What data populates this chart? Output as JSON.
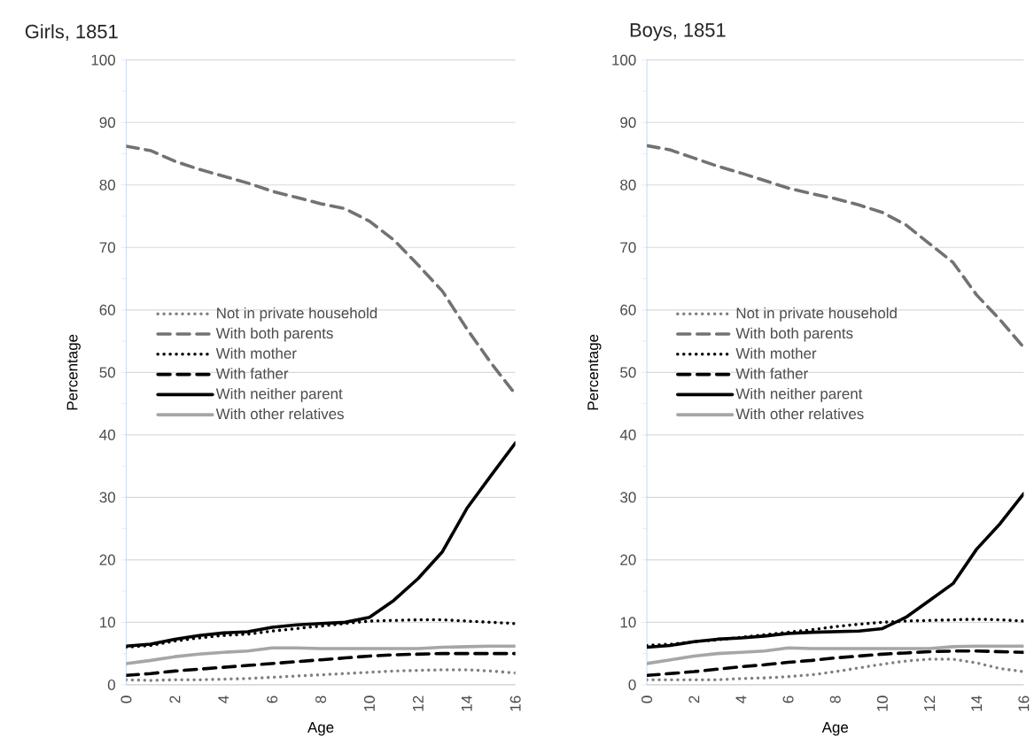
{
  "chart_data": [
    {
      "type": "line",
      "title": "Girls, 1851",
      "xlabel": "Age",
      "ylabel": "Percentage",
      "x": [
        0,
        1,
        2,
        3,
        4,
        5,
        6,
        7,
        8,
        9,
        10,
        11,
        12,
        13,
        14,
        15,
        16
      ],
      "xlim": [
        0,
        16
      ],
      "xticks": [
        0,
        2,
        4,
        6,
        8,
        10,
        12,
        14,
        16
      ],
      "ylim": [
        0,
        100
      ],
      "yticks": [
        0,
        10,
        20,
        30,
        40,
        50,
        60,
        70,
        80,
        90,
        100
      ],
      "grid": "y",
      "legend": "left",
      "series": [
        {
          "name": "Not in private household",
          "color": "#808080",
          "line_style": "dotted",
          "values": [
            0.8,
            0.7,
            0.8,
            0.8,
            0.9,
            1.0,
            1.2,
            1.4,
            1.6,
            1.8,
            2.0,
            2.2,
            2.3,
            2.4,
            2.4,
            2.2,
            1.9
          ]
        },
        {
          "name": "With both parents",
          "color": "#767171",
          "line_style": "dashed",
          "values": [
            86.2,
            85.5,
            83.8,
            82.5,
            81.4,
            80.3,
            79.0,
            78.0,
            77.0,
            76.2,
            74.2,
            71.2,
            67.2,
            63.0,
            57.0,
            51.5,
            46.5
          ]
        },
        {
          "name": "With mother",
          "color": "#000000",
          "line_style": "dotted",
          "values": [
            6.0,
            6.3,
            7.0,
            7.5,
            7.9,
            8.1,
            8.6,
            9.0,
            9.4,
            9.8,
            10.2,
            10.3,
            10.4,
            10.4,
            10.2,
            10.0,
            9.8
          ]
        },
        {
          "name": "With father",
          "color": "#000000",
          "line_style": "dashed",
          "values": [
            1.5,
            1.8,
            2.2,
            2.5,
            2.8,
            3.1,
            3.4,
            3.7,
            4.0,
            4.3,
            4.6,
            4.8,
            4.9,
            5.0,
            5.0,
            5.0,
            5.0
          ]
        },
        {
          "name": "With neither parent",
          "color": "#000000",
          "line_style": "solid",
          "values": [
            6.2,
            6.5,
            7.3,
            7.9,
            8.3,
            8.5,
            9.2,
            9.6,
            9.8,
            10.0,
            10.8,
            13.5,
            17.0,
            21.3,
            28.2,
            33.5,
            38.7
          ]
        },
        {
          "name": "With other relatives",
          "color": "#a6a6a6",
          "line_style": "solid",
          "values": [
            3.4,
            3.9,
            4.5,
            4.9,
            5.2,
            5.4,
            5.9,
            5.9,
            5.8,
            5.8,
            5.8,
            5.8,
            5.8,
            6.0,
            6.1,
            6.2,
            6.2
          ]
        }
      ]
    },
    {
      "type": "line",
      "title": "Boys, 1851",
      "xlabel": "Age",
      "ylabel": "Percentage",
      "x": [
        0,
        1,
        2,
        3,
        4,
        5,
        6,
        7,
        8,
        9,
        10,
        11,
        12,
        13,
        14,
        15,
        16
      ],
      "xlim": [
        0,
        16
      ],
      "xticks": [
        0,
        2,
        4,
        6,
        8,
        10,
        12,
        14,
        16
      ],
      "ylim": [
        0,
        100
      ],
      "yticks": [
        0,
        10,
        20,
        30,
        40,
        50,
        60,
        70,
        80,
        90,
        100
      ],
      "grid": "y",
      "legend": "left",
      "series": [
        {
          "name": "Not in private household",
          "color": "#808080",
          "line_style": "dotted",
          "values": [
            0.8,
            0.8,
            0.8,
            0.8,
            1.0,
            1.1,
            1.3,
            1.6,
            2.1,
            2.7,
            3.3,
            3.8,
            4.1,
            4.1,
            3.5,
            2.6,
            2.1
          ]
        },
        {
          "name": "With both parents",
          "color": "#767171",
          "line_style": "dashed",
          "values": [
            86.3,
            85.6,
            84.3,
            83.0,
            81.9,
            80.7,
            79.5,
            78.6,
            77.8,
            76.8,
            75.6,
            73.6,
            70.6,
            67.6,
            62.4,
            58.4,
            54.0
          ]
        },
        {
          "name": "With mother",
          "color": "#000000",
          "line_style": "dotted",
          "values": [
            6.3,
            6.5,
            6.9,
            7.2,
            7.6,
            8.0,
            8.4,
            8.8,
            9.3,
            9.7,
            10.0,
            10.2,
            10.3,
            10.4,
            10.5,
            10.4,
            10.2
          ]
        },
        {
          "name": "With father",
          "color": "#000000",
          "line_style": "dashed",
          "values": [
            1.5,
            1.8,
            2.1,
            2.5,
            2.9,
            3.2,
            3.6,
            3.9,
            4.3,
            4.6,
            4.9,
            5.1,
            5.3,
            5.4,
            5.4,
            5.3,
            5.2
          ]
        },
        {
          "name": "With neither parent",
          "color": "#000000",
          "line_style": "solid",
          "values": [
            6.0,
            6.3,
            6.9,
            7.3,
            7.5,
            7.8,
            8.2,
            8.4,
            8.5,
            8.6,
            9.0,
            10.8,
            13.5,
            16.2,
            21.7,
            25.8,
            30.6
          ]
        },
        {
          "name": "With other relatives",
          "color": "#a6a6a6",
          "line_style": "solid",
          "values": [
            3.4,
            4.0,
            4.6,
            5.0,
            5.2,
            5.4,
            5.9,
            5.8,
            5.8,
            5.8,
            5.8,
            5.8,
            5.8,
            6.1,
            6.2,
            6.2,
            6.2
          ]
        }
      ]
    }
  ]
}
